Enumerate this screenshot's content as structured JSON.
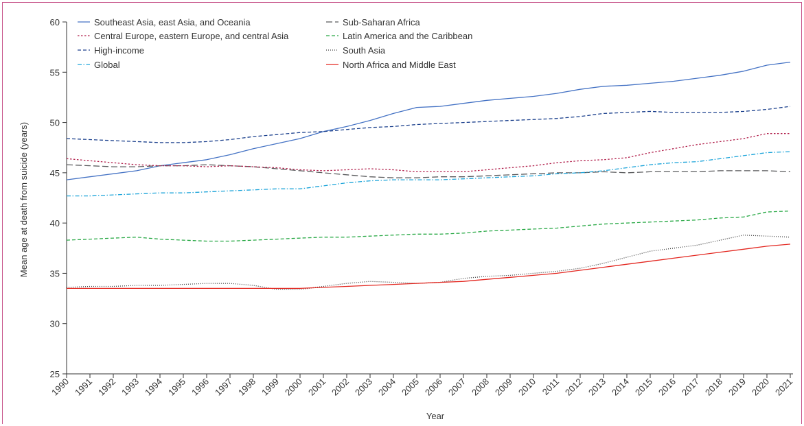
{
  "chart_data": {
    "type": "line",
    "title": "",
    "xlabel": "Year",
    "ylabel": "Mean age at death from suicide (years)",
    "ylim": [
      25,
      60
    ],
    "yticks": [
      25,
      30,
      35,
      40,
      45,
      50,
      55,
      60
    ],
    "grid": false,
    "legend_position": "top-left",
    "x": [
      1990,
      1991,
      1992,
      1993,
      1994,
      1995,
      1996,
      1997,
      1998,
      1999,
      2000,
      2001,
      2002,
      2003,
      2004,
      2005,
      2006,
      2007,
      2008,
      2009,
      2010,
      2011,
      2012,
      2013,
      2014,
      2015,
      2016,
      2017,
      2018,
      2019,
      2020,
      2021
    ],
    "series": [
      {
        "name": "Southeast Asia, east Asia, and Oceania",
        "color": "#4472c4",
        "dash": "solid",
        "values": [
          44.3,
          44.6,
          44.9,
          45.2,
          45.7,
          46.0,
          46.3,
          46.8,
          47.4,
          47.9,
          48.4,
          49.1,
          49.6,
          50.2,
          50.9,
          51.5,
          51.6,
          51.9,
          52.2,
          52.4,
          52.6,
          52.9,
          53.3,
          53.6,
          53.7,
          53.9,
          54.1,
          54.4,
          54.7,
          55.1,
          55.7,
          56.0
        ]
      },
      {
        "name": "Sub-Saharan Africa",
        "color": "#58595b",
        "dash": "longdash",
        "values": [
          45.8,
          45.7,
          45.6,
          45.6,
          45.7,
          45.7,
          45.8,
          45.7,
          45.6,
          45.4,
          45.2,
          45.0,
          44.8,
          44.6,
          44.5,
          44.5,
          44.6,
          44.6,
          44.7,
          44.8,
          44.9,
          45.0,
          45.0,
          45.1,
          45.0,
          45.1,
          45.1,
          45.1,
          45.2,
          45.2,
          45.2,
          45.1
        ]
      },
      {
        "name": "Central Europe, eastern Europe, and central Asia",
        "color": "#b11f4b",
        "dash": "dotted",
        "values": [
          46.4,
          46.2,
          46.0,
          45.8,
          45.7,
          45.7,
          45.6,
          45.7,
          45.6,
          45.5,
          45.3,
          45.2,
          45.3,
          45.4,
          45.3,
          45.1,
          45.1,
          45.1,
          45.3,
          45.5,
          45.7,
          46.0,
          46.2,
          46.3,
          46.5,
          47.0,
          47.4,
          47.8,
          48.1,
          48.4,
          48.9,
          48.9
        ]
      },
      {
        "name": "Latin America and the Caribbean",
        "color": "#27a844",
        "dash": "dashed",
        "values": [
          38.3,
          38.4,
          38.5,
          38.6,
          38.4,
          38.3,
          38.2,
          38.2,
          38.3,
          38.4,
          38.5,
          38.6,
          38.6,
          38.7,
          38.8,
          38.9,
          38.9,
          39.0,
          39.2,
          39.3,
          39.4,
          39.5,
          39.7,
          39.9,
          40.0,
          40.1,
          40.2,
          40.3,
          40.5,
          40.6,
          41.1,
          41.2
        ]
      },
      {
        "name": "High-income",
        "color": "#1a3f8c",
        "dash": "dashed",
        "values": [
          48.4,
          48.3,
          48.2,
          48.1,
          48.0,
          48.0,
          48.1,
          48.3,
          48.6,
          48.8,
          49.0,
          49.1,
          49.3,
          49.5,
          49.6,
          49.8,
          49.9,
          50.0,
          50.1,
          50.2,
          50.3,
          50.4,
          50.6,
          50.9,
          51.0,
          51.1,
          51.0,
          51.0,
          51.0,
          51.1,
          51.3,
          51.6
        ]
      },
      {
        "name": "South Asia",
        "color": "#3a3a3a",
        "dash": "finedot",
        "values": [
          33.6,
          33.7,
          33.7,
          33.8,
          33.8,
          33.9,
          34.0,
          34.0,
          33.8,
          33.4,
          33.4,
          33.7,
          34.0,
          34.2,
          34.1,
          34.0,
          34.1,
          34.5,
          34.7,
          34.8,
          35.0,
          35.2,
          35.5,
          36.0,
          36.6,
          37.2,
          37.5,
          37.8,
          38.3,
          38.8,
          38.7,
          38.6
        ]
      },
      {
        "name": "Global",
        "color": "#1aa3d9",
        "dash": "dashdot",
        "values": [
          42.7,
          42.7,
          42.8,
          42.9,
          43.0,
          43.0,
          43.1,
          43.2,
          43.3,
          43.4,
          43.4,
          43.7,
          44.0,
          44.2,
          44.3,
          44.3,
          44.3,
          44.4,
          44.5,
          44.6,
          44.7,
          44.9,
          45.0,
          45.2,
          45.5,
          45.8,
          46.0,
          46.1,
          46.4,
          46.7,
          47.0,
          47.1
        ]
      },
      {
        "name": "North Africa and Middle East",
        "color": "#e3261f",
        "dash": "solid",
        "values": [
          33.5,
          33.5,
          33.5,
          33.5,
          33.5,
          33.5,
          33.5,
          33.5,
          33.5,
          33.5,
          33.5,
          33.6,
          33.7,
          33.8,
          33.9,
          34.0,
          34.1,
          34.2,
          34.4,
          34.6,
          34.8,
          35.0,
          35.3,
          35.6,
          35.9,
          36.2,
          36.5,
          36.8,
          37.1,
          37.4,
          37.7,
          37.9
        ]
      }
    ]
  }
}
